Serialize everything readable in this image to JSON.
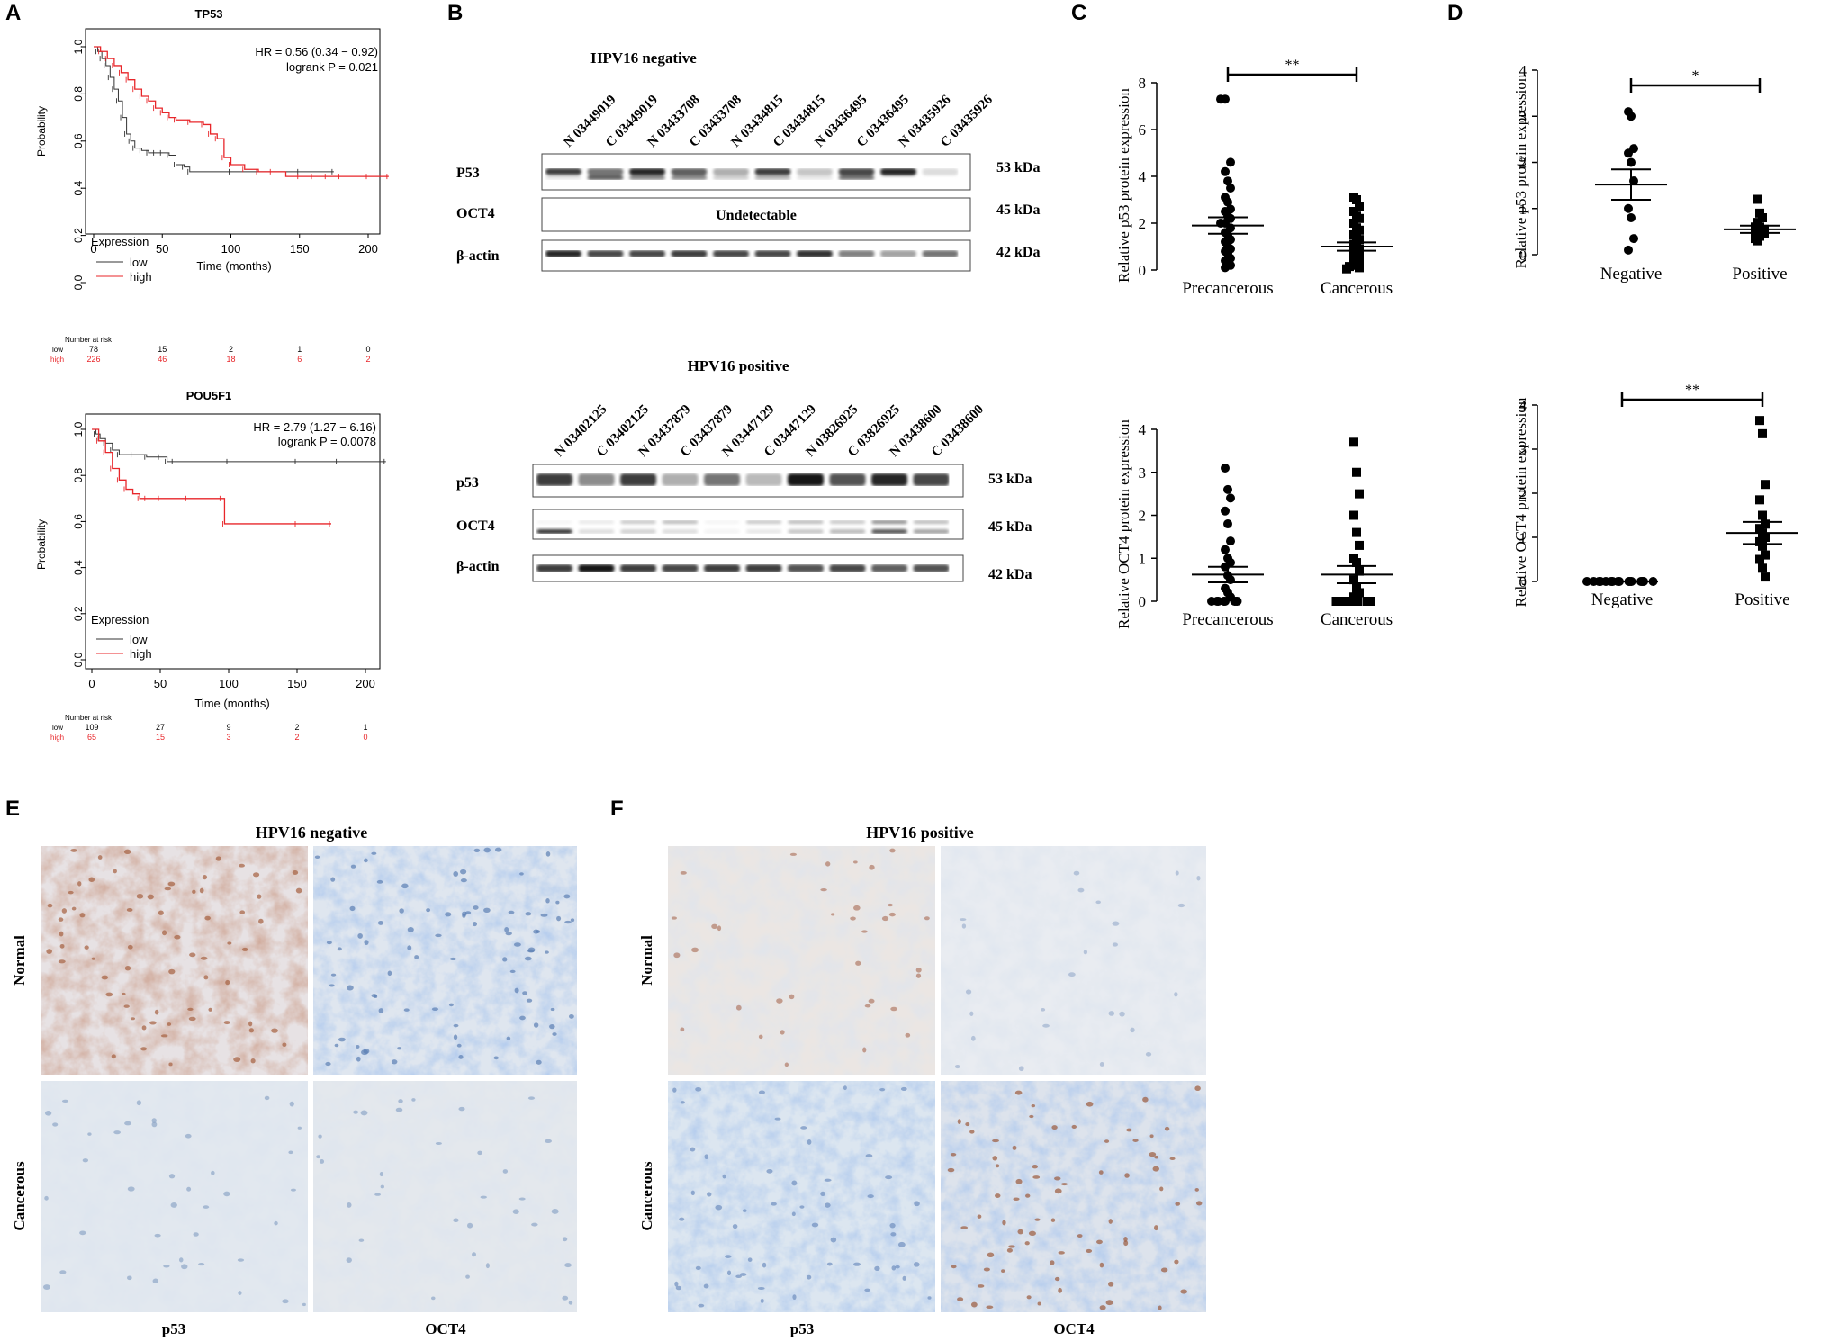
{
  "panels": {
    "A": "A",
    "B": "B",
    "C": "C",
    "D": "D",
    "E": "E",
    "F": "F"
  },
  "km": {
    "expression_label": "Expression",
    "low": "low",
    "high": "high",
    "y_label": "Probability",
    "x_label": "Time (months)",
    "number_at_risk": "Number at risk",
    "colors": {
      "low": "#333333",
      "high": "#e8262a"
    },
    "plots": [
      {
        "title": "TP53",
        "hr": "HR = 0.56 (0.34 − 0.92)",
        "logrank": "logrank P = 0.021",
        "risk_times": [
          "0",
          "50",
          "100",
          "150",
          "200"
        ],
        "risk_low": [
          "78",
          "15",
          "2",
          "1",
          "0"
        ],
        "risk_high": [
          "226",
          "46",
          "18",
          "6",
          "2"
        ]
      },
      {
        "title": "POU5F1",
        "hr": "HR = 2.79 (1.27 − 6.16)",
        "logrank": "logrank P = 0.0078",
        "risk_times": [
          "0",
          "50",
          "100",
          "150",
          "200"
        ],
        "risk_low": [
          "109",
          "27",
          "9",
          "2",
          "1"
        ],
        "risk_high": [
          "65",
          "15",
          "3",
          "2",
          "0"
        ]
      }
    ]
  },
  "chart_data": [
    {
      "type": "line",
      "title": "TP53",
      "xlabel": "Time (months)",
      "ylabel": "Probability",
      "xlim": [
        0,
        215
      ],
      "ylim": [
        0,
        1
      ],
      "series": [
        {
          "name": "low",
          "x": [
            0,
            3,
            6,
            9,
            12,
            15,
            18,
            21,
            24,
            27,
            30,
            35,
            40,
            45,
            50,
            55,
            60,
            66,
            70,
            100,
            150,
            175
          ],
          "y": [
            1.0,
            0.98,
            0.95,
            0.92,
            0.87,
            0.82,
            0.77,
            0.7,
            0.63,
            0.6,
            0.57,
            0.56,
            0.55,
            0.55,
            0.55,
            0.54,
            0.5,
            0.49,
            0.47,
            0.47,
            0.47,
            0.47
          ]
        },
        {
          "name": "high",
          "x": [
            0,
            5,
            10,
            15,
            20,
            25,
            30,
            35,
            40,
            45,
            50,
            55,
            60,
            70,
            80,
            85,
            90,
            95,
            100,
            110,
            120,
            130,
            140,
            150,
            160,
            170,
            180,
            200,
            215
          ],
          "y": [
            1.0,
            0.98,
            0.95,
            0.92,
            0.89,
            0.86,
            0.82,
            0.79,
            0.77,
            0.74,
            0.72,
            0.7,
            0.69,
            0.68,
            0.67,
            0.63,
            0.61,
            0.53,
            0.5,
            0.48,
            0.47,
            0.47,
            0.45,
            0.45,
            0.45,
            0.45,
            0.45,
            0.45,
            0.45
          ]
        }
      ]
    },
    {
      "type": "line",
      "title": "POU5F1",
      "xlabel": "Time (months)",
      "ylabel": "Probability",
      "xlim": [
        0,
        215
      ],
      "ylim": [
        0,
        1
      ],
      "series": [
        {
          "name": "low",
          "x": [
            0,
            3,
            6,
            10,
            15,
            20,
            30,
            40,
            50,
            55,
            60,
            100,
            150,
            180,
            215
          ],
          "y": [
            1.0,
            0.98,
            0.96,
            0.94,
            0.91,
            0.89,
            0.89,
            0.88,
            0.88,
            0.86,
            0.86,
            0.86,
            0.86,
            0.86,
            0.86
          ]
        },
        {
          "name": "high",
          "x": [
            0,
            5,
            10,
            15,
            20,
            25,
            30,
            35,
            40,
            50,
            70,
            95,
            97,
            150,
            175
          ],
          "y": [
            1.0,
            0.95,
            0.9,
            0.83,
            0.78,
            0.74,
            0.72,
            0.7,
            0.7,
            0.7,
            0.7,
            0.7,
            0.59,
            0.59,
            0.59
          ]
        }
      ]
    },
    {
      "type": "scatter",
      "panel": "C",
      "ylabel": "Relative p53 protein expression",
      "categories": [
        "Precancerous",
        "Cancerous"
      ],
      "ylim": [
        0,
        8
      ],
      "significance": "**",
      "series": [
        {
          "name": "Precancerous",
          "values": [
            7.3,
            7.3,
            4.6,
            4.2,
            3.8,
            3.5,
            3.1,
            2.9,
            2.6,
            2.5,
            2.3,
            2.2,
            2.0,
            2.0,
            1.8,
            1.6,
            1.5,
            1.3,
            1.2,
            1.0,
            0.9,
            0.8,
            0.7,
            0.5,
            0.4,
            0.3,
            0.2,
            0.1
          ],
          "mean": 1.9,
          "sem": 0.35
        },
        {
          "name": "Cancerous",
          "values": [
            3.1,
            3.0,
            2.7,
            2.5,
            2.3,
            2.2,
            2.0,
            1.8,
            1.7,
            1.5,
            1.4,
            1.3,
            1.1,
            1.0,
            0.9,
            0.8,
            0.7,
            0.6,
            0.5,
            0.4,
            0.3,
            0.2,
            0.15,
            0.1,
            0.05
          ],
          "mean": 1.0,
          "sem": 0.18
        }
      ]
    },
    {
      "type": "scatter",
      "panel": "C",
      "ylabel": "Relative OCT4 protein expression",
      "categories": [
        "Precancerous",
        "Cancerous"
      ],
      "ylim": [
        0,
        4
      ],
      "series": [
        {
          "name": "Precancerous",
          "values": [
            3.1,
            2.6,
            2.4,
            2.1,
            1.8,
            1.4,
            1.2,
            1.0,
            0.9,
            0.8,
            0.6,
            0.5,
            0.3,
            0.2,
            0.1,
            0,
            0,
            0,
            0,
            0,
            0,
            0,
            0
          ],
          "mean": 0.62,
          "sem": 0.18
        },
        {
          "name": "Cancerous",
          "values": [
            3.7,
            3.0,
            2.5,
            2.0,
            1.6,
            1.3,
            1.0,
            0.9,
            0.7,
            0.5,
            0.3,
            0.2,
            0.1,
            0,
            0,
            0,
            0,
            0,
            0,
            0,
            0,
            0,
            0
          ],
          "mean": 0.62,
          "sem": 0.2
        }
      ]
    },
    {
      "type": "scatter",
      "panel": "D",
      "ylabel": "Relative p53 protein expression",
      "categories": [
        "Negative",
        "Positive"
      ],
      "ylim": [
        0,
        4
      ],
      "significance": "*",
      "series": [
        {
          "name": "Negative",
          "values": [
            3.1,
            3.0,
            2.3,
            2.2,
            2.0,
            1.6,
            1.0,
            0.8,
            0.35,
            0.1
          ],
          "mean": 1.52,
          "sem": 0.33
        },
        {
          "name": "Positive",
          "values": [
            1.2,
            0.9,
            0.8,
            0.7,
            0.6,
            0.6,
            0.55,
            0.5,
            0.5,
            0.45,
            0.4,
            0.35,
            0.3
          ],
          "mean": 0.55,
          "sem": 0.08
        }
      ]
    },
    {
      "type": "scatter",
      "panel": "D",
      "ylabel": "Relative OCT4 protein expression",
      "categories": [
        "Negative",
        "Positive"
      ],
      "ylim": [
        0,
        4
      ],
      "significance": "**",
      "series": [
        {
          "name": "Negative",
          "values": [
            0,
            0,
            0,
            0,
            0,
            0,
            0,
            0,
            0,
            0,
            0,
            0,
            0,
            0,
            0,
            0
          ],
          "mean": 0,
          "sem": 0
        },
        {
          "name": "Positive",
          "values": [
            3.65,
            3.35,
            2.2,
            1.85,
            1.5,
            1.3,
            1.2,
            1.1,
            1.0,
            0.9,
            0.8,
            0.6,
            0.5,
            0.3,
            0.1
          ],
          "mean": 1.1,
          "sem": 0.25
        }
      ]
    }
  ],
  "western": {
    "kda_53": "53 kDa",
    "kda_45": "45 kDa",
    "kda_42": "42 kDa",
    "neg": {
      "title": "HPV16 negative",
      "lanes": [
        "N 03449019",
        "C 03449019",
        "N 03433708",
        "C 03433708",
        "N 03434815",
        "C 03434815",
        "N 03436495",
        "C 03436495",
        "N 03435926",
        "C 03435926"
      ],
      "row1": "P53",
      "row2": "OCT4",
      "row3": "β-actin",
      "undetectable": "Undetectable"
    },
    "pos": {
      "title": "HPV16 positive",
      "lanes": [
        "N 03402125",
        "C 03402125",
        "N 03437879",
        "C 03437879",
        "N 03447129",
        "C 03447129",
        "N 03826925",
        "C 03826925",
        "N 03438600",
        "C 03438600"
      ],
      "row1": "p53",
      "row2": "OCT4",
      "row3": "β-actin"
    }
  },
  "ihc": {
    "e_title": "HPV16 negative",
    "f_title": "HPV16 positive",
    "row_normal": "Normal",
    "row_cancerous": "Cancerous",
    "col_p53": "p53",
    "col_oct4": "OCT4"
  }
}
